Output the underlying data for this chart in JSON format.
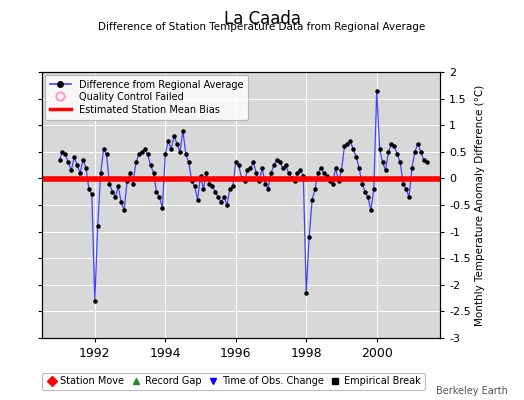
{
  "title": "La Caada",
  "subtitle": "Difference of Station Temperature Data from Regional Average",
  "ylabel": "Monthly Temperature Anomaly Difference (°C)",
  "bias_value": -0.02,
  "xlim_start": 1990.5,
  "xlim_end": 2001.8,
  "ylim": [
    -3,
    2
  ],
  "yticks": [
    -3,
    -2.5,
    -2,
    -1.5,
    -1,
    -0.5,
    0,
    0.5,
    1,
    1.5,
    2
  ],
  "xticks": [
    1992,
    1994,
    1996,
    1998,
    2000
  ],
  "line_color": "#4444ff",
  "dot_color": "#000000",
  "bias_color": "#ff0000",
  "background_color": "#d8d8d8",
  "watermark": "Berkeley Earth",
  "legend1_entries": [
    {
      "label": "Difference from Regional Average",
      "color": "#4444ff",
      "type": "line_dot"
    },
    {
      "label": "Quality Control Failed",
      "color": "#ff99cc",
      "type": "circle"
    },
    {
      "label": "Estimated Station Mean Bias",
      "color": "#ff0000",
      "type": "line"
    }
  ],
  "legend2_entries": [
    {
      "label": "Station Move",
      "color": "#ff0000",
      "marker": "D"
    },
    {
      "label": "Record Gap",
      "color": "#228B22",
      "marker": "^"
    },
    {
      "label": "Time of Obs. Change",
      "color": "#0000ff",
      "marker": "v"
    },
    {
      "label": "Empirical Break",
      "color": "#000000",
      "marker": "s"
    }
  ],
  "data_x": [
    1991.0,
    1991.083,
    1991.167,
    1991.25,
    1991.333,
    1991.417,
    1991.5,
    1991.583,
    1991.667,
    1991.75,
    1991.833,
    1991.917,
    1992.0,
    1992.083,
    1992.167,
    1992.25,
    1992.333,
    1992.417,
    1992.5,
    1992.583,
    1992.667,
    1992.75,
    1992.833,
    1992.917,
    1993.0,
    1993.083,
    1993.167,
    1993.25,
    1993.333,
    1993.417,
    1993.5,
    1993.583,
    1993.667,
    1993.75,
    1993.833,
    1993.917,
    1994.0,
    1994.083,
    1994.167,
    1994.25,
    1994.333,
    1994.417,
    1994.5,
    1994.583,
    1994.667,
    1994.75,
    1994.833,
    1994.917,
    1995.0,
    1995.083,
    1995.167,
    1995.25,
    1995.333,
    1995.417,
    1995.5,
    1995.583,
    1995.667,
    1995.75,
    1995.833,
    1995.917,
    1996.0,
    1996.083,
    1996.167,
    1996.25,
    1996.333,
    1996.417,
    1996.5,
    1996.583,
    1996.667,
    1996.75,
    1996.833,
    1996.917,
    1997.0,
    1997.083,
    1997.167,
    1997.25,
    1997.333,
    1997.417,
    1997.5,
    1997.583,
    1997.667,
    1997.75,
    1997.833,
    1997.917,
    1998.0,
    1998.083,
    1998.167,
    1998.25,
    1998.333,
    1998.417,
    1998.5,
    1998.583,
    1998.667,
    1998.75,
    1998.833,
    1998.917,
    1999.0,
    1999.083,
    1999.167,
    1999.25,
    1999.333,
    1999.417,
    1999.5,
    1999.583,
    1999.667,
    1999.75,
    1999.833,
    1999.917,
    2000.0,
    2000.083,
    2000.167,
    2000.25,
    2000.333,
    2000.417,
    2000.5,
    2000.583,
    2000.667,
    2000.75,
    2000.833,
    2000.917,
    2001.0,
    2001.083,
    2001.167,
    2001.25,
    2001.333,
    2001.417
  ],
  "data_y": [
    0.35,
    0.5,
    0.45,
    0.3,
    0.15,
    0.4,
    0.25,
    0.1,
    0.35,
    0.2,
    -0.2,
    -0.3,
    -2.3,
    -0.9,
    0.1,
    0.55,
    0.45,
    -0.1,
    -0.25,
    -0.35,
    -0.15,
    -0.45,
    -0.6,
    -0.05,
    0.1,
    -0.1,
    0.3,
    0.45,
    0.5,
    0.55,
    0.45,
    0.25,
    0.1,
    -0.25,
    -0.35,
    -0.55,
    0.45,
    0.7,
    0.55,
    0.8,
    0.65,
    0.5,
    0.9,
    0.45,
    0.3,
    -0.05,
    -0.15,
    -0.4,
    0.05,
    -0.2,
    0.1,
    -0.1,
    -0.15,
    -0.25,
    -0.35,
    -0.45,
    -0.35,
    -0.5,
    -0.2,
    -0.15,
    0.3,
    0.25,
    0.0,
    -0.05,
    0.15,
    0.2,
    0.3,
    0.1,
    -0.05,
    0.2,
    -0.1,
    -0.2,
    0.1,
    0.25,
    0.35,
    0.3,
    0.2,
    0.25,
    0.1,
    0.0,
    -0.05,
    0.1,
    0.15,
    0.05,
    -2.15,
    -1.1,
    -0.4,
    -0.2,
    0.1,
    0.2,
    0.1,
    0.05,
    -0.05,
    -0.1,
    0.2,
    -0.05,
    0.15,
    0.6,
    0.65,
    0.7,
    0.55,
    0.4,
    0.2,
    -0.1,
    -0.25,
    -0.35,
    -0.6,
    -0.2,
    1.65,
    0.55,
    0.3,
    0.15,
    0.5,
    0.65,
    0.6,
    0.45,
    0.3,
    -0.1,
    -0.2,
    -0.35,
    0.2,
    0.5,
    0.65,
    0.5,
    0.35,
    0.3
  ]
}
